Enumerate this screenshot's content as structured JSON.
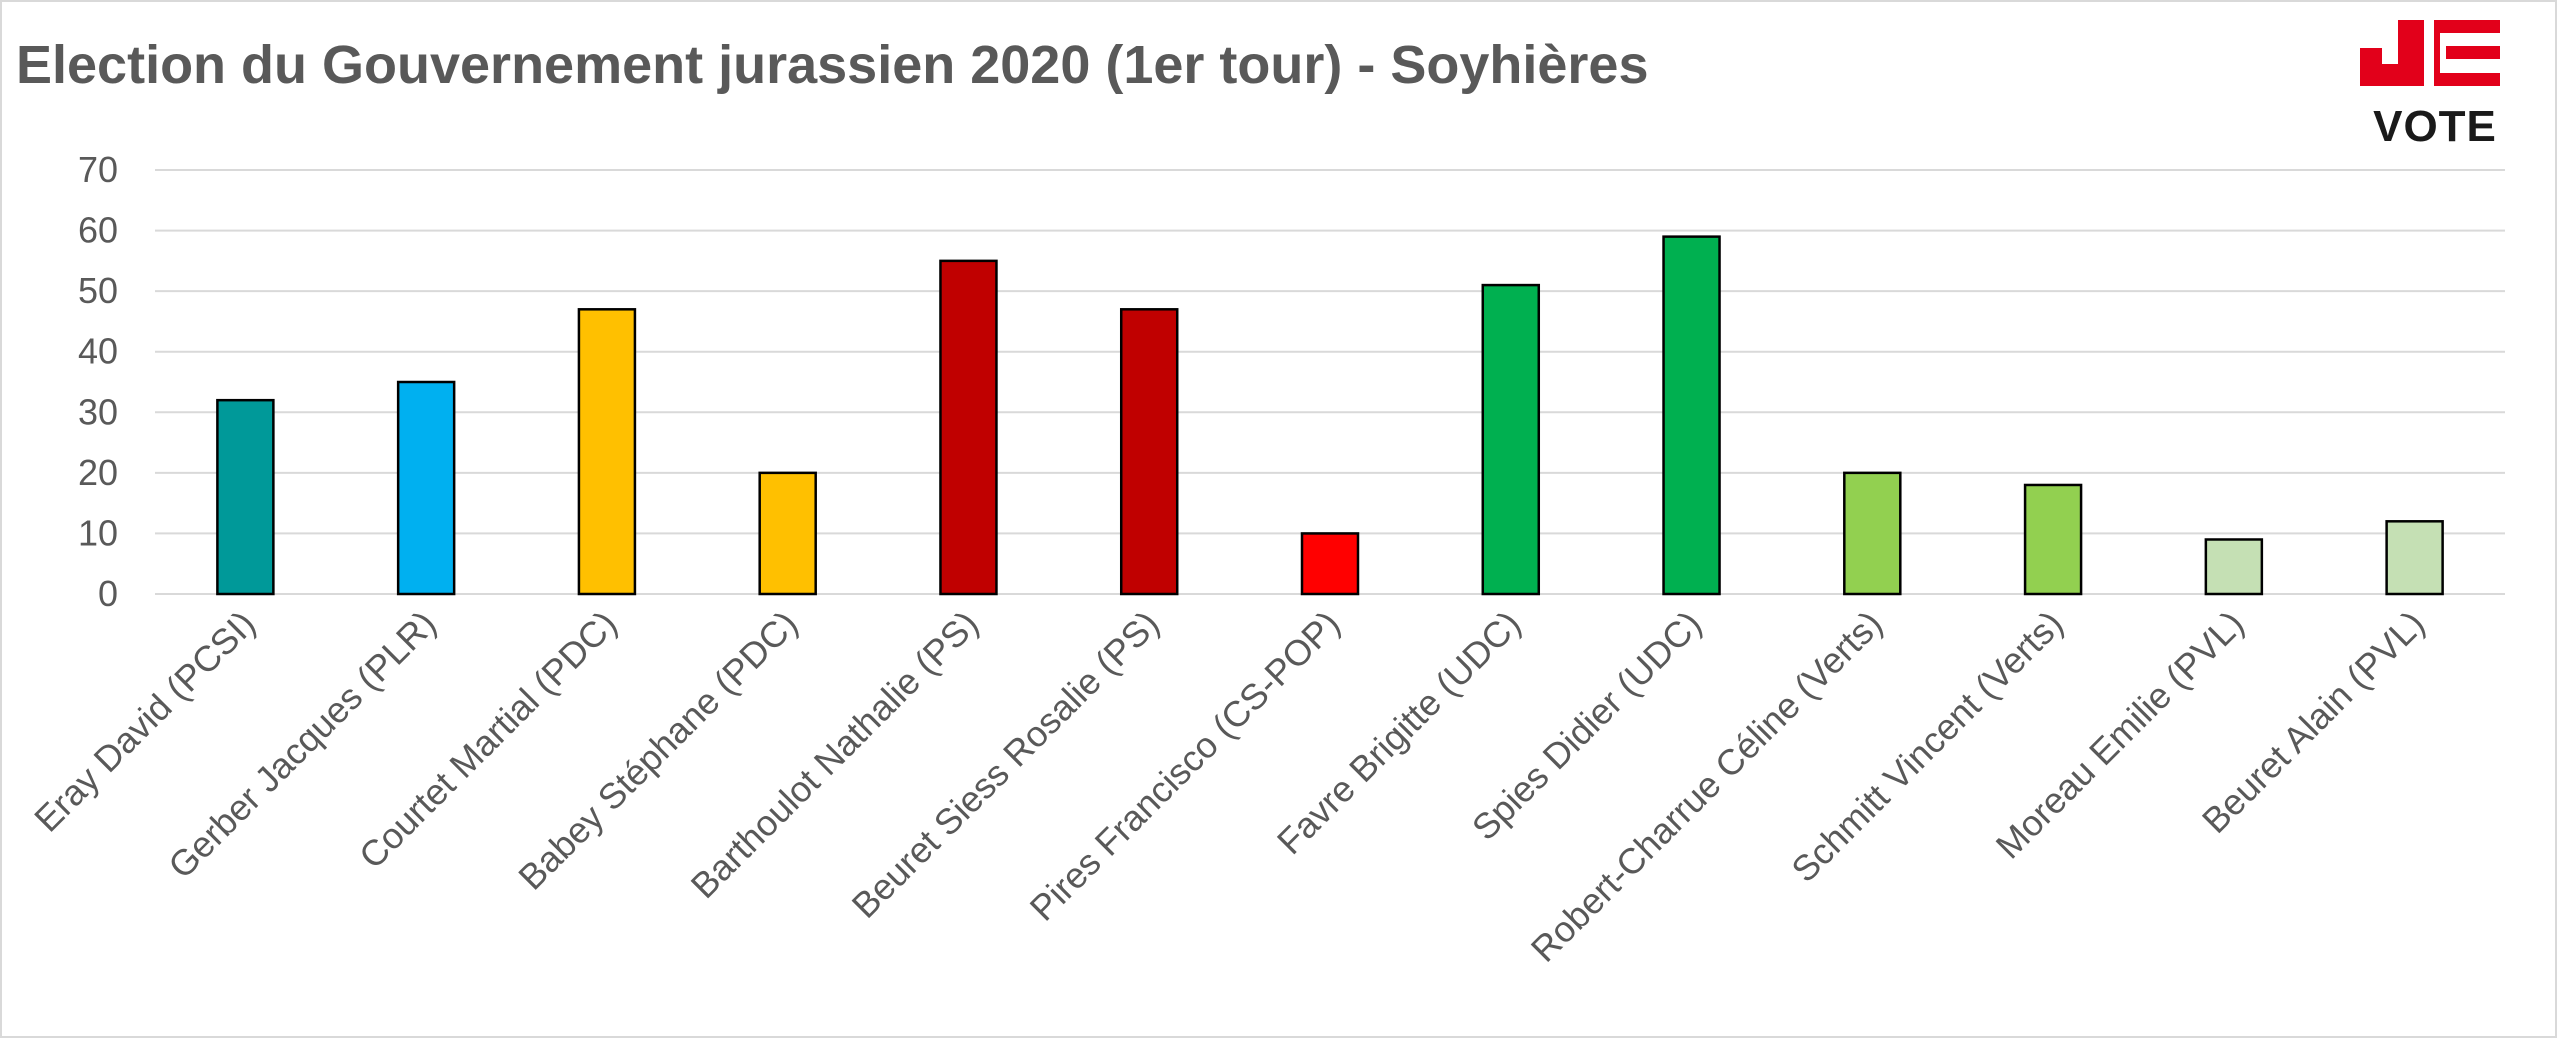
{
  "title": "Election du Gouvernement jurassien 2020 (1er tour) - Soyhières",
  "logo": {
    "letters": "JE",
    "word": "VOTE",
    "color": "#e2001a"
  },
  "chart_data": {
    "type": "bar",
    "categories": [
      "Eray David (PCSI)",
      "Gerber Jacques (PLR)",
      "Courtet Martial (PDC)",
      "Babey Stéphane (PDC)",
      "Barthoulot Nathalie (PS)",
      "Beuret Siess Rosalie (PS)",
      "Pires Francisco (CS-POP)",
      "Favre Brigitte (UDC)",
      "Spies Didier (UDC)",
      "Robert-Charrue Céline (Verts)",
      "Schmitt Vincent (Verts)",
      "Moreau Emilie (PVL)",
      "Beuret Alain (PVL)"
    ],
    "values": [
      32,
      35,
      47,
      20,
      55,
      47,
      10,
      51,
      59,
      20,
      18,
      9,
      12
    ],
    "colors": [
      "#009999",
      "#00b0f0",
      "#ffc000",
      "#ffc000",
      "#c00000",
      "#c00000",
      "#ff0000",
      "#00b050",
      "#00b050",
      "#92d050",
      "#92d050",
      "#c5e0b4",
      "#c5e0b4"
    ],
    "ylim": [
      0,
      70
    ],
    "yticks": [
      0,
      10,
      20,
      30,
      40,
      50,
      60,
      70
    ],
    "grid": true,
    "legend": "none"
  }
}
